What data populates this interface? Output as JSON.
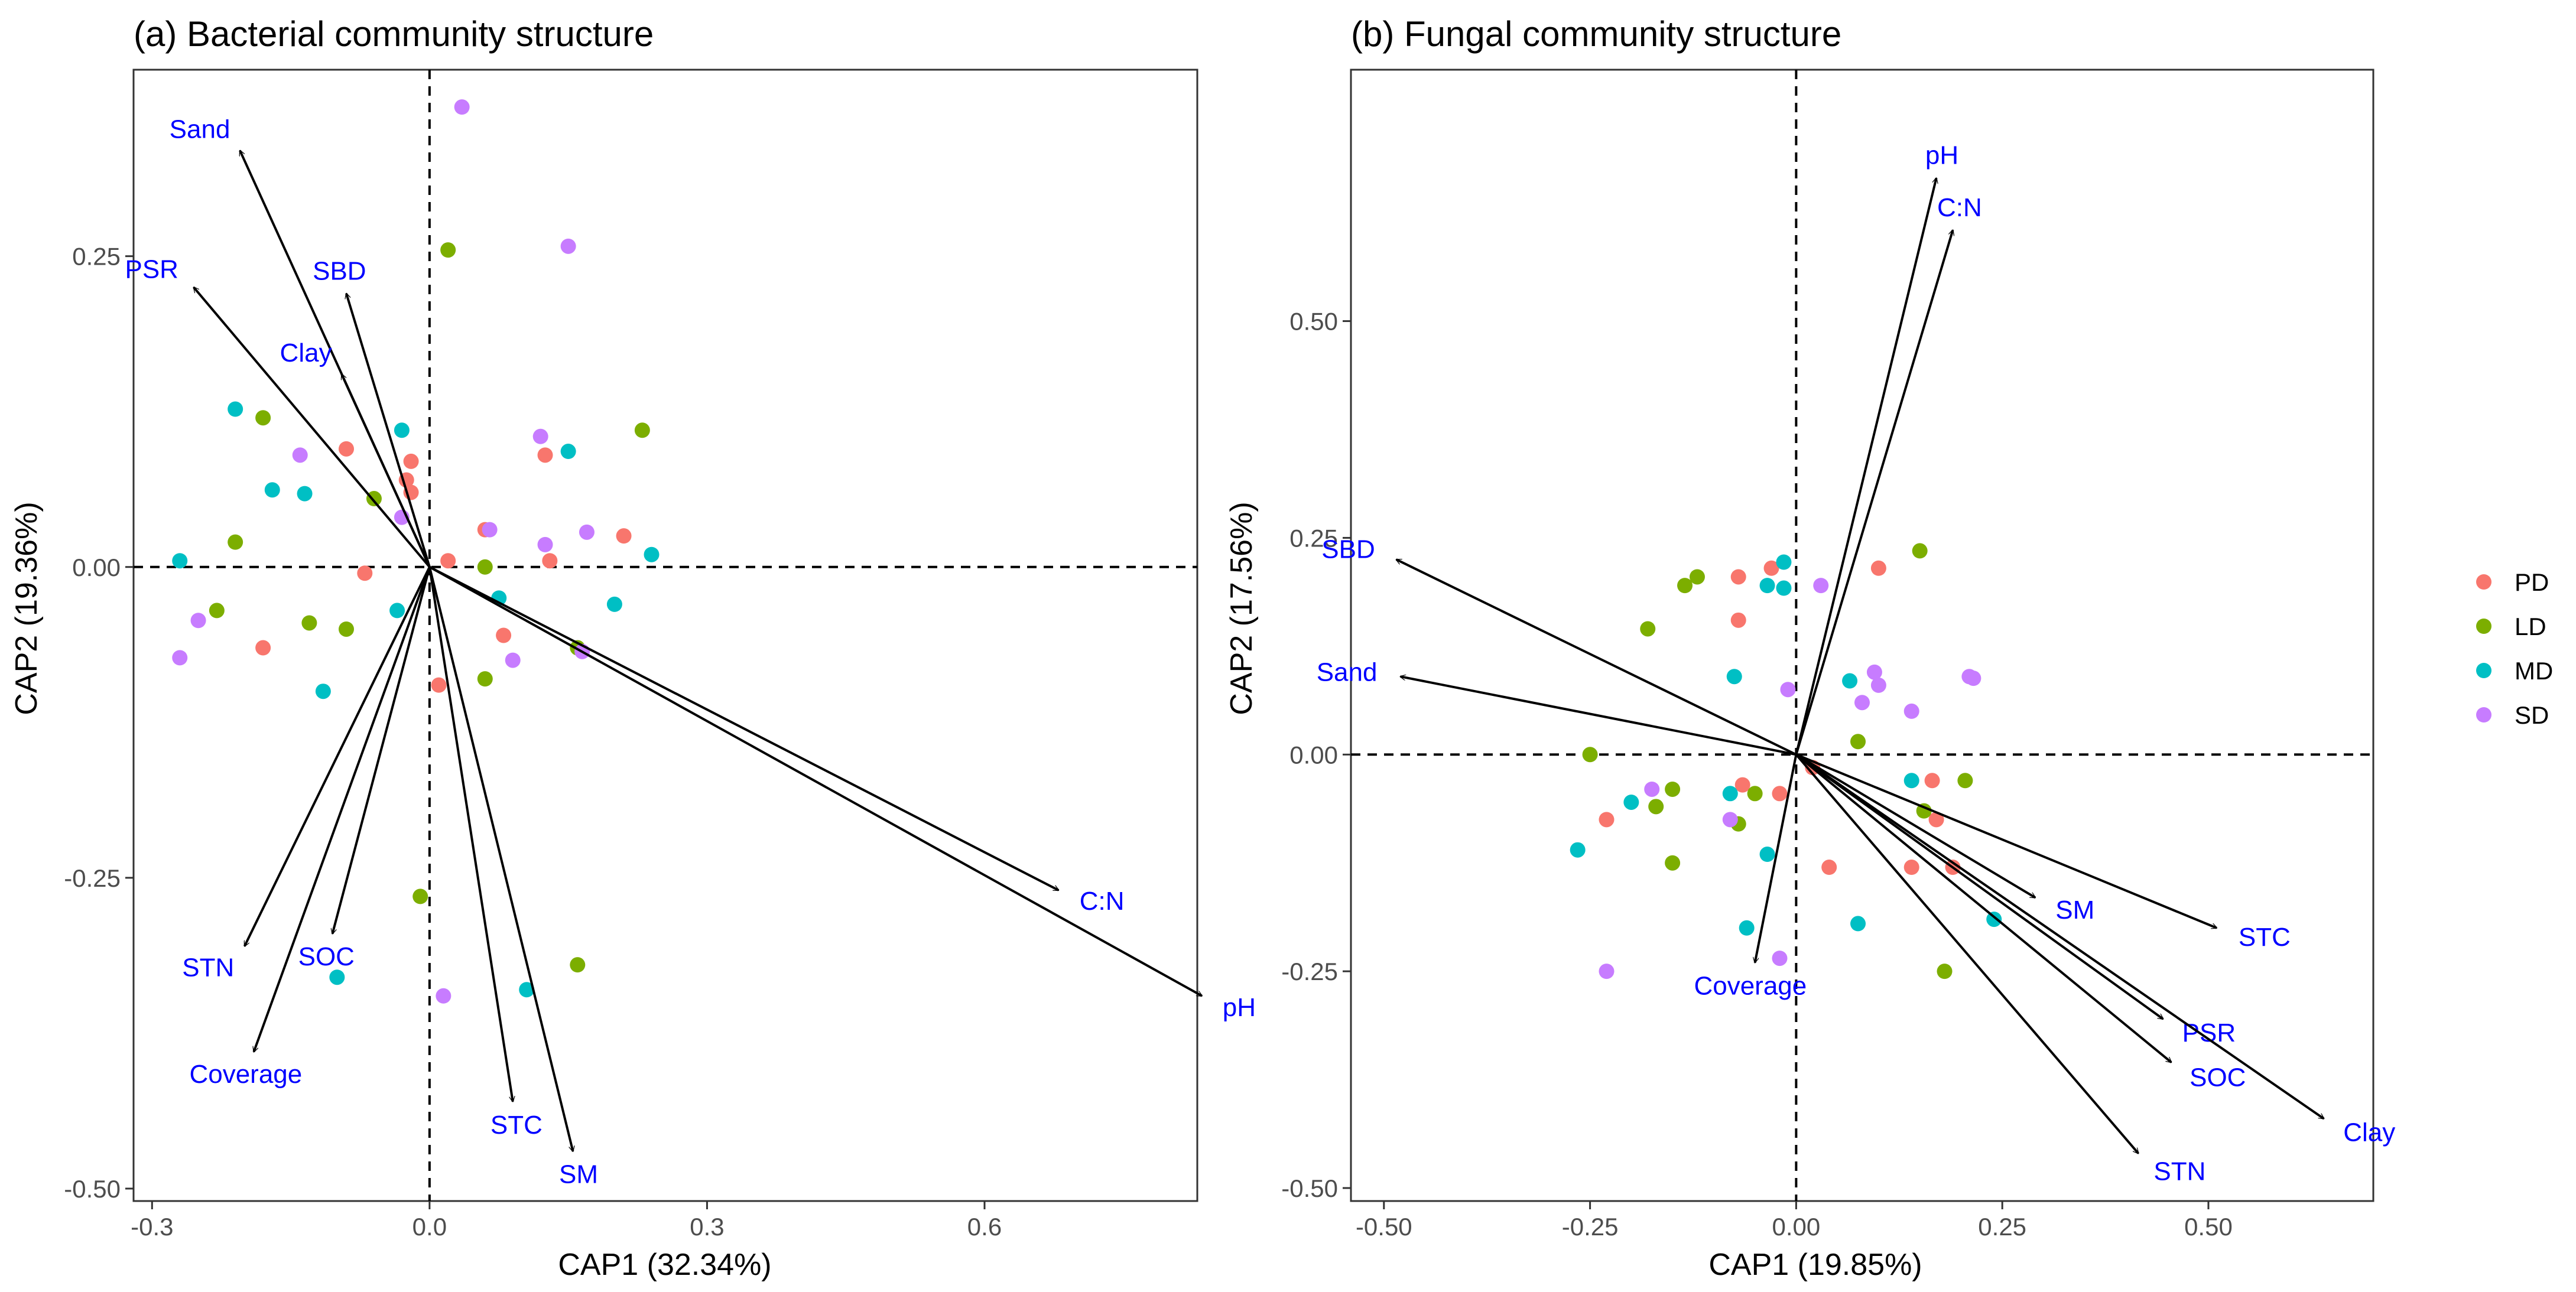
{
  "chart_data": [
    {
      "type": "scatter",
      "title": "(a) Bacterial community structure",
      "xlabel": "CAP1 (32.34%)",
      "ylabel": "CAP2 (19.36%)",
      "xlim": [
        -0.32,
        0.83
      ],
      "ylim": [
        -0.51,
        0.4
      ],
      "xticks": [
        -0.3,
        0.0,
        0.3,
        0.6
      ],
      "xtick_labels": [
        "-0.3",
        "0.0",
        "0.3",
        "0.6"
      ],
      "yticks": [
        -0.5,
        -0.25,
        0.0,
        0.25
      ],
      "ytick_labels": [
        "-0.50",
        "-0.25",
        "0.00",
        "0.25"
      ],
      "series": [
        {
          "name": "PD",
          "points": [
            {
              "x": -0.09,
              "y": 0.095
            },
            {
              "x": -0.02,
              "y": 0.085
            },
            {
              "x": -0.025,
              "y": 0.07
            },
            {
              "x": -0.02,
              "y": 0.06
            },
            {
              "x": 0.06,
              "y": 0.03
            },
            {
              "x": 0.125,
              "y": 0.09
            },
            {
              "x": 0.13,
              "y": 0.005
            },
            {
              "x": 0.21,
              "y": 0.025
            },
            {
              "x": 0.02,
              "y": 0.005
            },
            {
              "x": -0.07,
              "y": -0.005
            },
            {
              "x": -0.18,
              "y": -0.065
            },
            {
              "x": 0.08,
              "y": -0.055
            },
            {
              "x": 0.01,
              "y": -0.095
            }
          ]
        },
        {
          "name": "LD",
          "points": [
            {
              "x": 0.02,
              "y": 0.255
            },
            {
              "x": -0.18,
              "y": 0.12
            },
            {
              "x": 0.23,
              "y": 0.11
            },
            {
              "x": -0.06,
              "y": 0.055
            },
            {
              "x": -0.21,
              "y": 0.02
            },
            {
              "x": 0.06,
              "y": 0.0
            },
            {
              "x": -0.23,
              "y": -0.035
            },
            {
              "x": -0.13,
              "y": -0.045
            },
            {
              "x": -0.09,
              "y": -0.05
            },
            {
              "x": 0.16,
              "y": -0.065
            },
            {
              "x": 0.06,
              "y": -0.09
            },
            {
              "x": -0.01,
              "y": -0.265
            },
            {
              "x": 0.16,
              "y": -0.32
            }
          ]
        },
        {
          "name": "MD",
          "points": [
            {
              "x": -0.21,
              "y": 0.127
            },
            {
              "x": -0.03,
              "y": 0.11
            },
            {
              "x": -0.17,
              "y": 0.062
            },
            {
              "x": -0.135,
              "y": 0.059
            },
            {
              "x": 0.15,
              "y": 0.093
            },
            {
              "x": 0.24,
              "y": 0.01
            },
            {
              "x": -0.27,
              "y": 0.005
            },
            {
              "x": 0.075,
              "y": -0.025
            },
            {
              "x": 0.2,
              "y": -0.03
            },
            {
              "x": -0.035,
              "y": -0.035
            },
            {
              "x": -0.115,
              "y": -0.1
            },
            {
              "x": -0.1,
              "y": -0.33
            },
            {
              "x": 0.105,
              "y": -0.34
            }
          ]
        },
        {
          "name": "SD",
          "points": [
            {
              "x": 0.035,
              "y": 0.37
            },
            {
              "x": 0.15,
              "y": 0.258
            },
            {
              "x": 0.12,
              "y": 0.105
            },
            {
              "x": -0.14,
              "y": 0.09
            },
            {
              "x": 0.065,
              "y": 0.03
            },
            {
              "x": 0.17,
              "y": 0.028
            },
            {
              "x": 0.125,
              "y": 0.018
            },
            {
              "x": -0.03,
              "y": 0.04
            },
            {
              "x": -0.25,
              "y": -0.043
            },
            {
              "x": -0.27,
              "y": -0.073
            },
            {
              "x": 0.09,
              "y": -0.075
            },
            {
              "x": 0.165,
              "y": -0.068
            },
            {
              "x": 0.015,
              "y": -0.345
            }
          ]
        }
      ],
      "vectors": [
        {
          "label": "Sand",
          "x": -0.205,
          "y": 0.335
        },
        {
          "label": "PSR",
          "x": -0.255,
          "y": 0.225
        },
        {
          "label": "SBD",
          "x": -0.09,
          "y": 0.22
        },
        {
          "label": "Clay",
          "x": -0.095,
          "y": 0.155
        },
        {
          "label": "C:N",
          "x": 0.68,
          "y": -0.26
        },
        {
          "label": "pH",
          "x": 0.835,
          "y": -0.345
        },
        {
          "label": "STN",
          "x": -0.2,
          "y": -0.305
        },
        {
          "label": "SOC",
          "x": -0.105,
          "y": -0.295
        },
        {
          "label": "Coverage",
          "x": -0.19,
          "y": -0.39
        },
        {
          "label": "STC",
          "x": 0.09,
          "y": -0.43
        },
        {
          "label": "SM",
          "x": 0.155,
          "y": -0.47
        }
      ]
    },
    {
      "type": "scatter",
      "title": "(b) Fungal community structure",
      "xlabel": "CAP1 (19.85%)",
      "ylabel": "CAP2 (17.56%)",
      "xlim": [
        -0.54,
        0.7
      ],
      "ylim": [
        -0.515,
        0.79
      ],
      "xticks": [
        -0.5,
        -0.25,
        0.0,
        0.25,
        0.5
      ],
      "xtick_labels": [
        "-0.50",
        "-0.25",
        "0.00",
        "0.25",
        "0.50"
      ],
      "yticks": [
        -0.5,
        -0.25,
        0.0,
        0.25,
        0.5
      ],
      "ytick_labels": [
        "-0.50",
        "-0.25",
        "0.00",
        "0.25",
        "0.50"
      ],
      "series": [
        {
          "name": "PD",
          "points": [
            {
              "x": -0.03,
              "y": 0.215
            },
            {
              "x": -0.07,
              "y": 0.205
            },
            {
              "x": 0.1,
              "y": 0.215
            },
            {
              "x": -0.07,
              "y": 0.155
            },
            {
              "x": -0.065,
              "y": -0.035
            },
            {
              "x": -0.02,
              "y": -0.045
            },
            {
              "x": 0.02,
              "y": -0.015
            },
            {
              "x": -0.23,
              "y": -0.075
            },
            {
              "x": 0.04,
              "y": -0.13
            },
            {
              "x": 0.14,
              "y": -0.13
            },
            {
              "x": 0.17,
              "y": -0.075
            },
            {
              "x": 0.165,
              "y": -0.03
            },
            {
              "x": 0.19,
              "y": -0.13
            }
          ]
        },
        {
          "name": "LD",
          "points": [
            {
              "x": 0.15,
              "y": 0.235
            },
            {
              "x": -0.12,
              "y": 0.205
            },
            {
              "x": -0.135,
              "y": 0.195
            },
            {
              "x": -0.18,
              "y": 0.145
            },
            {
              "x": 0.075,
              "y": 0.015
            },
            {
              "x": -0.25,
              "y": 0.0
            },
            {
              "x": -0.15,
              "y": -0.04
            },
            {
              "x": -0.17,
              "y": -0.06
            },
            {
              "x": -0.05,
              "y": -0.045
            },
            {
              "x": -0.07,
              "y": -0.08
            },
            {
              "x": -0.15,
              "y": -0.125
            },
            {
              "x": 0.155,
              "y": -0.065
            },
            {
              "x": 0.205,
              "y": -0.03
            },
            {
              "x": 0.18,
              "y": -0.25
            }
          ]
        },
        {
          "name": "MD",
          "points": [
            {
              "x": -0.015,
              "y": 0.222
            },
            {
              "x": -0.035,
              "y": 0.195
            },
            {
              "x": -0.015,
              "y": 0.192
            },
            {
              "x": -0.075,
              "y": 0.09
            },
            {
              "x": 0.065,
              "y": 0.085
            },
            {
              "x": 0.14,
              "y": -0.03
            },
            {
              "x": -0.08,
              "y": -0.045
            },
            {
              "x": -0.2,
              "y": -0.055
            },
            {
              "x": -0.265,
              "y": -0.11
            },
            {
              "x": -0.035,
              "y": -0.115
            },
            {
              "x": -0.06,
              "y": -0.2
            },
            {
              "x": 0.075,
              "y": -0.195
            },
            {
              "x": 0.24,
              "y": -0.19
            }
          ]
        },
        {
          "name": "SD",
          "points": [
            {
              "x": 0.03,
              "y": 0.195
            },
            {
              "x": -0.01,
              "y": 0.075
            },
            {
              "x": 0.095,
              "y": 0.095
            },
            {
              "x": 0.1,
              "y": 0.08
            },
            {
              "x": 0.08,
              "y": 0.06
            },
            {
              "x": 0.14,
              "y": 0.05
            },
            {
              "x": 0.21,
              "y": 0.09
            },
            {
              "x": 0.215,
              "y": 0.088
            },
            {
              "x": -0.175,
              "y": -0.04
            },
            {
              "x": -0.08,
              "y": -0.075
            },
            {
              "x": -0.02,
              "y": -0.235
            },
            {
              "x": -0.23,
              "y": -0.25
            }
          ]
        }
      ],
      "vectors": [
        {
          "label": "pH",
          "x": 0.17,
          "y": 0.665
        },
        {
          "label": "C:N",
          "x": 0.19,
          "y": 0.605
        },
        {
          "label": "SBD",
          "x": -0.485,
          "y": 0.225
        },
        {
          "label": "Sand",
          "x": -0.48,
          "y": 0.09
        },
        {
          "label": "Coverage",
          "x": -0.05,
          "y": -0.24
        },
        {
          "label": "SM",
          "x": 0.29,
          "y": -0.165
        },
        {
          "label": "STC",
          "x": 0.51,
          "y": -0.2
        },
        {
          "label": "PSR",
          "x": 0.445,
          "y": -0.305
        },
        {
          "label": "SOC",
          "x": 0.455,
          "y": -0.355
        },
        {
          "label": "STN",
          "x": 0.415,
          "y": -0.46
        },
        {
          "label": "Clay",
          "x": 0.64,
          "y": -0.42
        }
      ]
    }
  ],
  "legend": {
    "items": [
      {
        "label": "PD",
        "color": "#F8766D"
      },
      {
        "label": "LD",
        "color": "#7CAE00"
      },
      {
        "label": "MD",
        "color": "#00BFC4"
      },
      {
        "label": "SD",
        "color": "#C77CFF"
      }
    ]
  }
}
